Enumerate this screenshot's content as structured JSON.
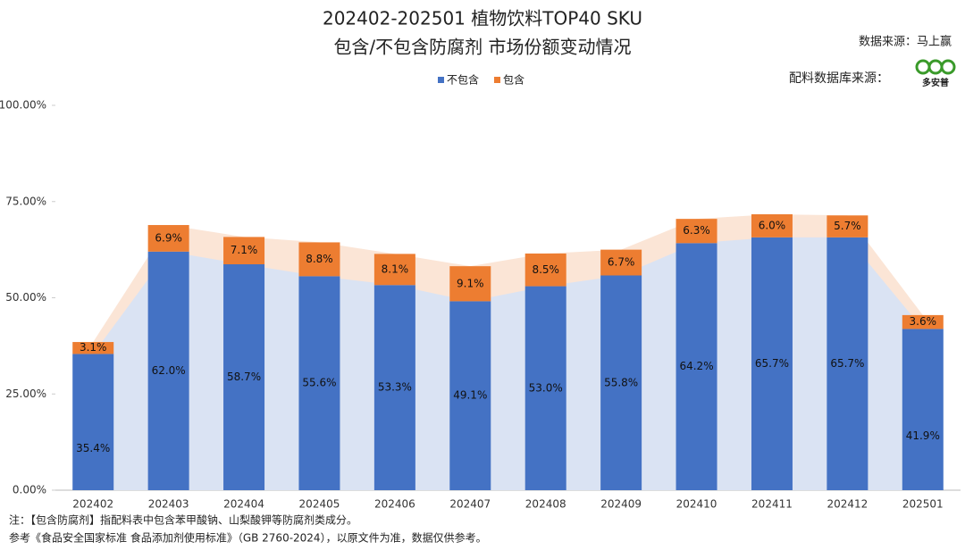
{
  "chart_data": {
    "type": "stacked_bar",
    "title": "202402-202501 植物饮料TOP40 SKU",
    "subtitle": "包含/不包含防腐剂 市场份额变动情况",
    "source": "数据来源：马上赢",
    "ingredient_source": "配料数据库来源：",
    "logo_text": "多安普",
    "notes": [
      "注：【包含防腐剂】指配料表中包含苯甲酸钠、山梨酸钾等防腐剂类成分。",
      "参考《食品安全国家标准 食品添加剂使用标准》（GB 2760-2024），以原文件为准，数据仅供参考。"
    ],
    "categories": [
      "202402",
      "202403",
      "202404",
      "202405",
      "202406",
      "202407",
      "202408",
      "202409",
      "202410",
      "202411",
      "202412",
      "202501"
    ],
    "series": [
      {
        "name": "不包含",
        "color": "#4472c4",
        "area_color": "#dae3f3",
        "values": [
          35.4,
          62.0,
          58.7,
          55.6,
          53.3,
          49.1,
          53.0,
          55.8,
          64.2,
          65.7,
          65.7,
          41.9
        ],
        "value_labels": [
          "35.4%",
          "62.0%",
          "58.7%",
          "55.6%",
          "53.3%",
          "49.1%",
          "53.0%",
          "55.8%",
          "64.2%",
          "65.7%",
          "65.7%",
          "41.9%"
        ]
      },
      {
        "name": "包含",
        "color": "#ed7d31",
        "area_color": "#fbe5d6",
        "values": [
          3.1,
          6.9,
          7.1,
          8.8,
          8.1,
          9.1,
          8.5,
          6.7,
          6.3,
          6.0,
          5.7,
          3.6
        ],
        "value_labels": [
          "3.1%",
          "6.9%",
          "7.1%",
          "8.8%",
          "8.1%",
          "9.1%",
          "8.5%",
          "6.7%",
          "6.3%",
          "6.0%",
          "5.7%",
          "3.6%"
        ]
      }
    ],
    "ylim": [
      0,
      100
    ],
    "yticks": [
      {
        "value": 0,
        "label": "0.00%"
      },
      {
        "value": 25,
        "label": "25.00%"
      },
      {
        "value": 50,
        "label": "50.00%"
      },
      {
        "value": 75,
        "label": "75.00%"
      },
      {
        "value": 100,
        "label": "100.00%"
      }
    ],
    "grid": false
  }
}
